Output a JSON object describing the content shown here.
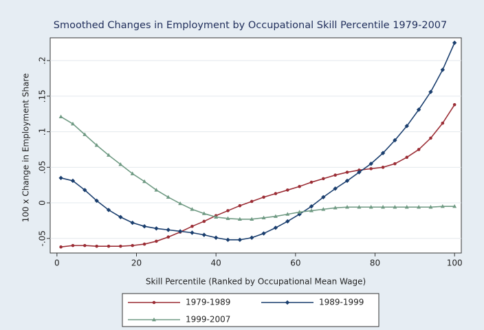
{
  "chart_data": {
    "type": "line",
    "title": "Smoothed Changes in Employment by Occupational Skill Percentile 1979-2007",
    "x_label": "Skill Percentile (Ranked by Occupational Mean Wage)",
    "y_label": "100 x Change in Employment Share",
    "x": [
      1,
      4,
      7,
      10,
      13,
      16,
      19,
      22,
      25,
      28,
      31,
      34,
      37,
      40,
      43,
      46,
      49,
      52,
      55,
      58,
      61,
      64,
      67,
      70,
      73,
      76,
      79,
      82,
      85,
      88,
      91,
      94,
      97,
      100
    ],
    "series": [
      {
        "name": "1979-1989",
        "color": "#9b2d35",
        "marker": "circle",
        "values": [
          -0.062,
          -0.06,
          -0.06,
          -0.061,
          -0.061,
          -0.061,
          -0.06,
          -0.058,
          -0.054,
          -0.048,
          -0.041,
          -0.033,
          -0.026,
          -0.018,
          -0.011,
          -0.004,
          0.002,
          0.008,
          0.013,
          0.018,
          0.023,
          0.029,
          0.034,
          0.039,
          0.043,
          0.046,
          0.048,
          0.05,
          0.055,
          0.064,
          0.075,
          0.091,
          0.112,
          0.138
        ]
      },
      {
        "name": "1989-1999",
        "color": "#1a3e6e",
        "marker": "diamond",
        "values": [
          0.035,
          0.031,
          0.018,
          0.003,
          -0.01,
          -0.02,
          -0.028,
          -0.033,
          -0.036,
          -0.038,
          -0.04,
          -0.042,
          -0.045,
          -0.049,
          -0.052,
          -0.052,
          -0.049,
          -0.043,
          -0.035,
          -0.026,
          -0.016,
          -0.005,
          0.008,
          0.02,
          0.031,
          0.043,
          0.055,
          0.07,
          0.088,
          0.108,
          0.131,
          0.156,
          0.187,
          0.225
        ]
      },
      {
        "name": "1999-2007",
        "color": "#6f9a83",
        "marker": "triangle",
        "values": [
          0.121,
          0.111,
          0.096,
          0.081,
          0.067,
          0.054,
          0.041,
          0.03,
          0.018,
          0.008,
          -0.001,
          -0.009,
          -0.015,
          -0.02,
          -0.022,
          -0.023,
          -0.023,
          -0.021,
          -0.019,
          -0.016,
          -0.013,
          -0.011,
          -0.009,
          -0.007,
          -0.006,
          -0.006,
          -0.006,
          -0.006,
          -0.006,
          -0.006,
          -0.006,
          -0.006,
          -0.005,
          -0.005
        ]
      }
    ],
    "xlim": [
      -1.7,
      101.7
    ],
    "xticks": [
      0,
      20,
      40,
      60,
      80,
      100
    ],
    "ylim": [
      -0.0705,
      0.232
    ],
    "yticks": [
      {
        "value": -0.05,
        "label": "-.05"
      },
      0,
      {
        "value": 0.05,
        "label": ".05"
      },
      {
        "value": 0.1,
        "label": ".1"
      },
      {
        "value": 0.15,
        "label": ".15"
      },
      {
        "value": 0.2,
        "label": ".2"
      }
    ],
    "grid": true,
    "legend": "bottom"
  }
}
